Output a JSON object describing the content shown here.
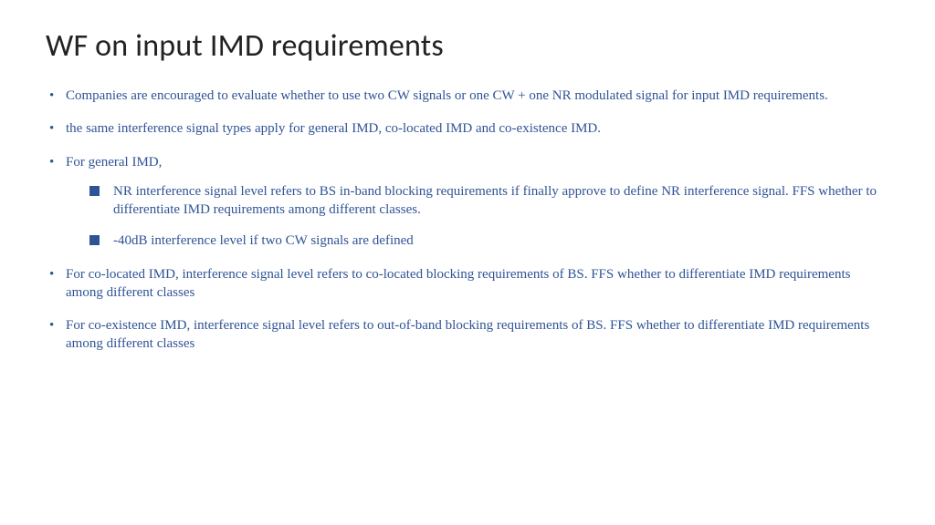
{
  "title": "WF on input IMD requirements",
  "text_color": "#2F5496",
  "title_color": "#222222",
  "background_color": "#ffffff",
  "title_fontsize": 34,
  "body_fontsize": 15,
  "bullets": [
    {
      "text": "Companies are encouraged to evaluate whether to use two CW signals or one CW + one NR modulated signal for input IMD requirements."
    },
    {
      "text": "the same interference signal types apply for general IMD, co-located IMD and co-existence IMD."
    },
    {
      "text": "For general IMD,",
      "sub": [
        "NR interference signal level refers to BS in-band blocking requirements if finally approve to define NR interference signal. FFS whether to differentiate IMD requirements among different classes.",
        "-40dB interference level if two CW signals are defined"
      ]
    },
    {
      "text": "For co-located IMD, interference signal level refers to co-located blocking requirements of BS. FFS whether to differentiate IMD requirements among different classes"
    },
    {
      "text": "For co-existence IMD, interference signal level refers to out-of-band blocking requirements of BS. FFS whether to differentiate IMD requirements among different classes"
    }
  ]
}
